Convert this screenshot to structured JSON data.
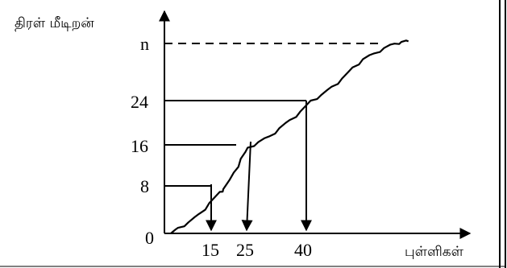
{
  "chart_data": {
    "type": "line",
    "title": "",
    "ylabel": "திரள் மீடிறன்",
    "xlabel": "புள்ளிகள்",
    "yticks": [
      "0",
      "8",
      "16",
      "24",
      "n"
    ],
    "xticks": [
      "15",
      "25",
      "40"
    ],
    "ylim": [
      0,
      34
    ],
    "xlim": [
      0,
      75
    ],
    "origin_label": "0",
    "curve": {
      "x": [
        0,
        2,
        5,
        8,
        11,
        14,
        15,
        18,
        20,
        22,
        25,
        28,
        31,
        34,
        37,
        40,
        43,
        46,
        49,
        52,
        55,
        58,
        61,
        64,
        66,
        68
      ],
      "y": [
        0,
        1,
        2,
        3.5,
        5.5,
        7.5,
        8,
        11,
        13.5,
        15.5,
        16.5,
        17.5,
        19,
        20.5,
        22,
        24,
        25,
        26.5,
        28,
        30,
        31.5,
        32.5,
        33.5,
        34.3,
        34.6,
        34.7
      ]
    },
    "guides": [
      {
        "y": 8,
        "x": 15
      },
      {
        "y": 16,
        "x": 21,
        "arrow_x": 25
      },
      {
        "y": 24,
        "x": 40
      },
      {
        "y": "n",
        "y_value": 31.3,
        "x": 60,
        "dashed": true
      }
    ]
  }
}
